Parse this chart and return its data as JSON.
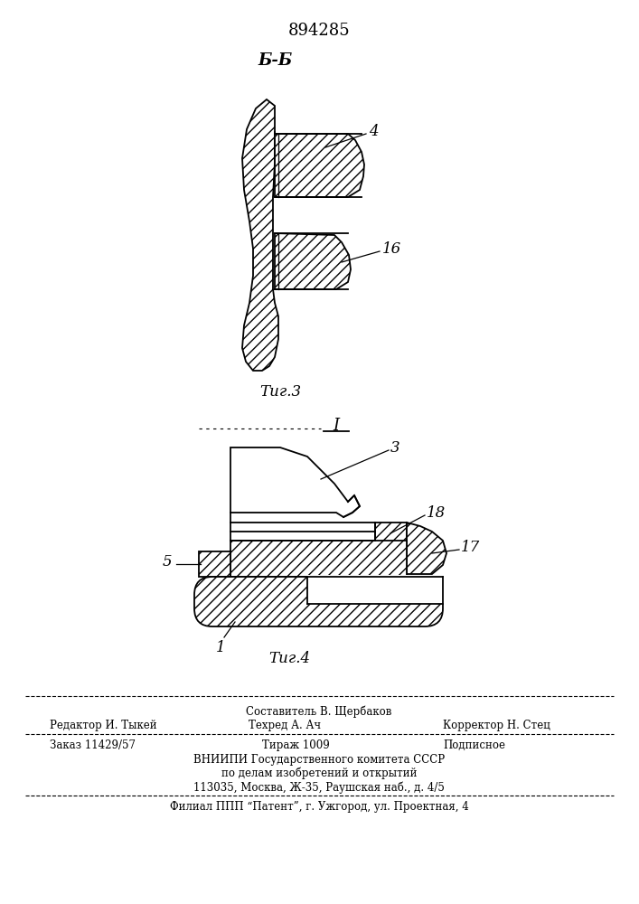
{
  "patent_number": "894285",
  "fig3_label": "Τиг.3",
  "fig4_label": "Τиг.4",
  "section_label_top": "Б-Б",
  "section_label_bottom": "I",
  "label_4": "4",
  "label_16": "16",
  "label_3": "3",
  "label_18": "18",
  "label_17": "17",
  "label_5": "5",
  "label_1": "1",
  "footer_line1": "Составитель В. Щербаков",
  "footer_line2_left": "Редактор И. Тыкей",
  "footer_line2_mid": "Техред А. Ач",
  "footer_line2_right": "Корректор Н. Стец",
  "footer_line3_left": "Заказ 11429/57",
  "footer_line3_mid": "Тираж 1009",
  "footer_line3_right": "Подписное",
  "footer_line4": "ВНИИПИ Государственного комитета СССР",
  "footer_line5": "по делам изобретений и открытий",
  "footer_line6": "113035, Москва, Ж-35, Раушская наб., д. 4/5",
  "footer_line7": "Филиал ППП “Патент”, г. Ужгород, ул. Проектная, 4",
  "bg_color": "#ffffff",
  "line_color": "#000000"
}
